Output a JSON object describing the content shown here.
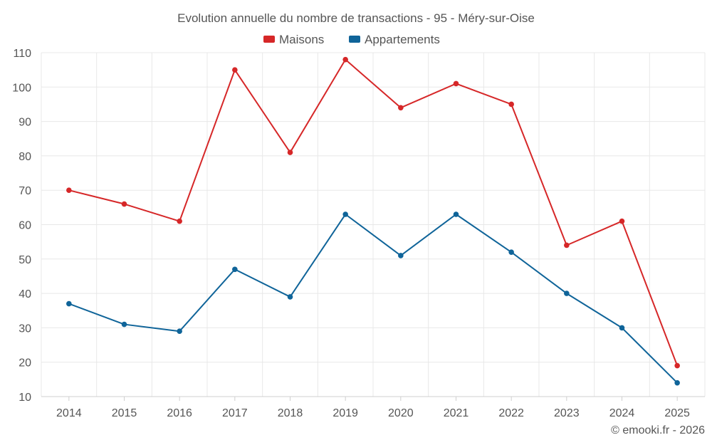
{
  "chart_data": {
    "type": "line",
    "title": "Evolution annuelle du nombre de transactions - 95 - Méry-sur-Oise",
    "categories": [
      "2014",
      "2015",
      "2016",
      "2017",
      "2018",
      "2019",
      "2020",
      "2021",
      "2022",
      "2023",
      "2024",
      "2025"
    ],
    "series": [
      {
        "name": "Maisons",
        "color": "#d62728",
        "values": [
          70,
          66,
          61,
          105,
          81,
          108,
          94,
          101,
          95,
          54,
          61,
          19
        ]
      },
      {
        "name": "Appartements",
        "color": "#0f6499",
        "values": [
          37,
          31,
          29,
          47,
          39,
          63,
          51,
          63,
          52,
          40,
          30,
          14
        ]
      }
    ],
    "ylim": [
      10,
      110
    ],
    "yticks": [
      10,
      20,
      30,
      40,
      50,
      60,
      70,
      80,
      90,
      100,
      110
    ],
    "xlabel": "",
    "ylabel": "",
    "grid": true,
    "legend_position": "top-center"
  },
  "credit": "© emooki.fr - 2026"
}
